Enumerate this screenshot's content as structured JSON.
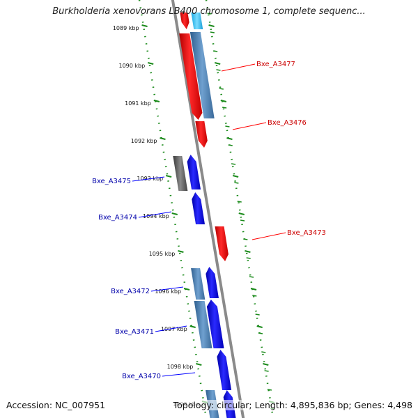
{
  "header": {
    "title": "Burkholderia xenovorans LB400 chromosome 1, complete sequenc..."
  },
  "footer": {
    "accession": "Accession: NC_007951",
    "summary": "Topology: circular; Length: 4,895,836 bp; Genes: 4,498"
  },
  "ruler": {
    "ticks": [
      "1089 kbp",
      "1090 kbp",
      "1091 kbp",
      "1092 kbp",
      "1093 kbp",
      "1094 kbp",
      "1095 kbp",
      "1096 kbp",
      "1097 kbp",
      "1098 kbp",
      "1099 kbp"
    ]
  },
  "genes": [
    {
      "name": "Bxe_A3477",
      "strand": "reverse",
      "color": "#ff0000"
    },
    {
      "name": "Bxe_A3476",
      "strand": "reverse",
      "color": "#ff0000"
    },
    {
      "name": "Bxe_A3475",
      "strand": "forward",
      "color": "#0000ff"
    },
    {
      "name": "Bxe_A3474",
      "strand": "forward",
      "color": "#0000ff"
    },
    {
      "name": "Bxe_A3473",
      "strand": "reverse",
      "color": "#ff0000"
    },
    {
      "name": "Bxe_A3472",
      "strand": "forward",
      "color": "#0000ff"
    },
    {
      "name": "Bxe_A3471",
      "strand": "forward",
      "color": "#0000ff"
    },
    {
      "name": "Bxe_A3470",
      "strand": "forward",
      "color": "#0000ff"
    }
  ],
  "colors": {
    "forward_cds": "#0000ff",
    "reverse_cds": "#ff0000",
    "orf": "#4a7fb5",
    "pseudo": "#6b6b6b",
    "axis": "#888888",
    "tick": "#1a8a1a"
  }
}
